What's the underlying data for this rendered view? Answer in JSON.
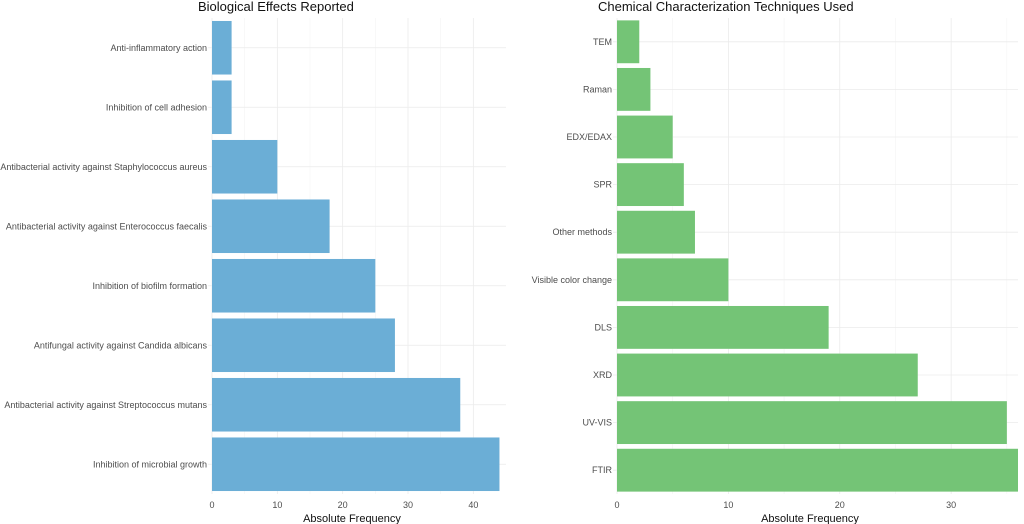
{
  "chart_data": [
    {
      "type": "bar",
      "orientation": "horizontal",
      "title": "Biological Effects Reported",
      "xlabel": "Absolute Frequency",
      "ylabel": "",
      "xlim": [
        0,
        45
      ],
      "ticks": [
        0,
        10,
        20,
        30,
        40
      ],
      "ticks_text": [
        "0",
        "10",
        "20",
        "30",
        "40"
      ],
      "color": "#6baed6",
      "grid": true,
      "categories": [
        "Anti-inflammatory action",
        "Inhibition of cell adhesion",
        "Antibacterial activity against Staphylococcus aureus",
        "Antibacterial activity against Enterococcus faecalis",
        "Inhibition of biofilm formation",
        "Antifungal activity against Candida albicans",
        "Antibacterial activity against Streptococcus mutans",
        "Inhibition of microbial growth"
      ],
      "values": [
        3,
        3,
        10,
        18,
        25,
        28,
        38,
        44
      ]
    },
    {
      "type": "bar",
      "orientation": "horizontal",
      "title": "Chemical Characterization Techniques Used",
      "xlabel": "Absolute Frequency",
      "ylabel": "",
      "xlim": [
        0,
        36
      ],
      "ticks": [
        0,
        10,
        20,
        30
      ],
      "ticks_text": [
        "0",
        "10",
        "20",
        "30"
      ],
      "color": "#74c476",
      "grid": true,
      "categories": [
        "TEM",
        "Raman",
        "EDX/EDAX",
        "SPR",
        "Other methods",
        "Visible color change",
        "DLS",
        "XRD",
        "UV-VIS",
        "FTIR"
      ],
      "values": [
        2,
        3,
        5,
        6,
        7,
        10,
        19,
        27,
        35,
        36
      ]
    }
  ]
}
